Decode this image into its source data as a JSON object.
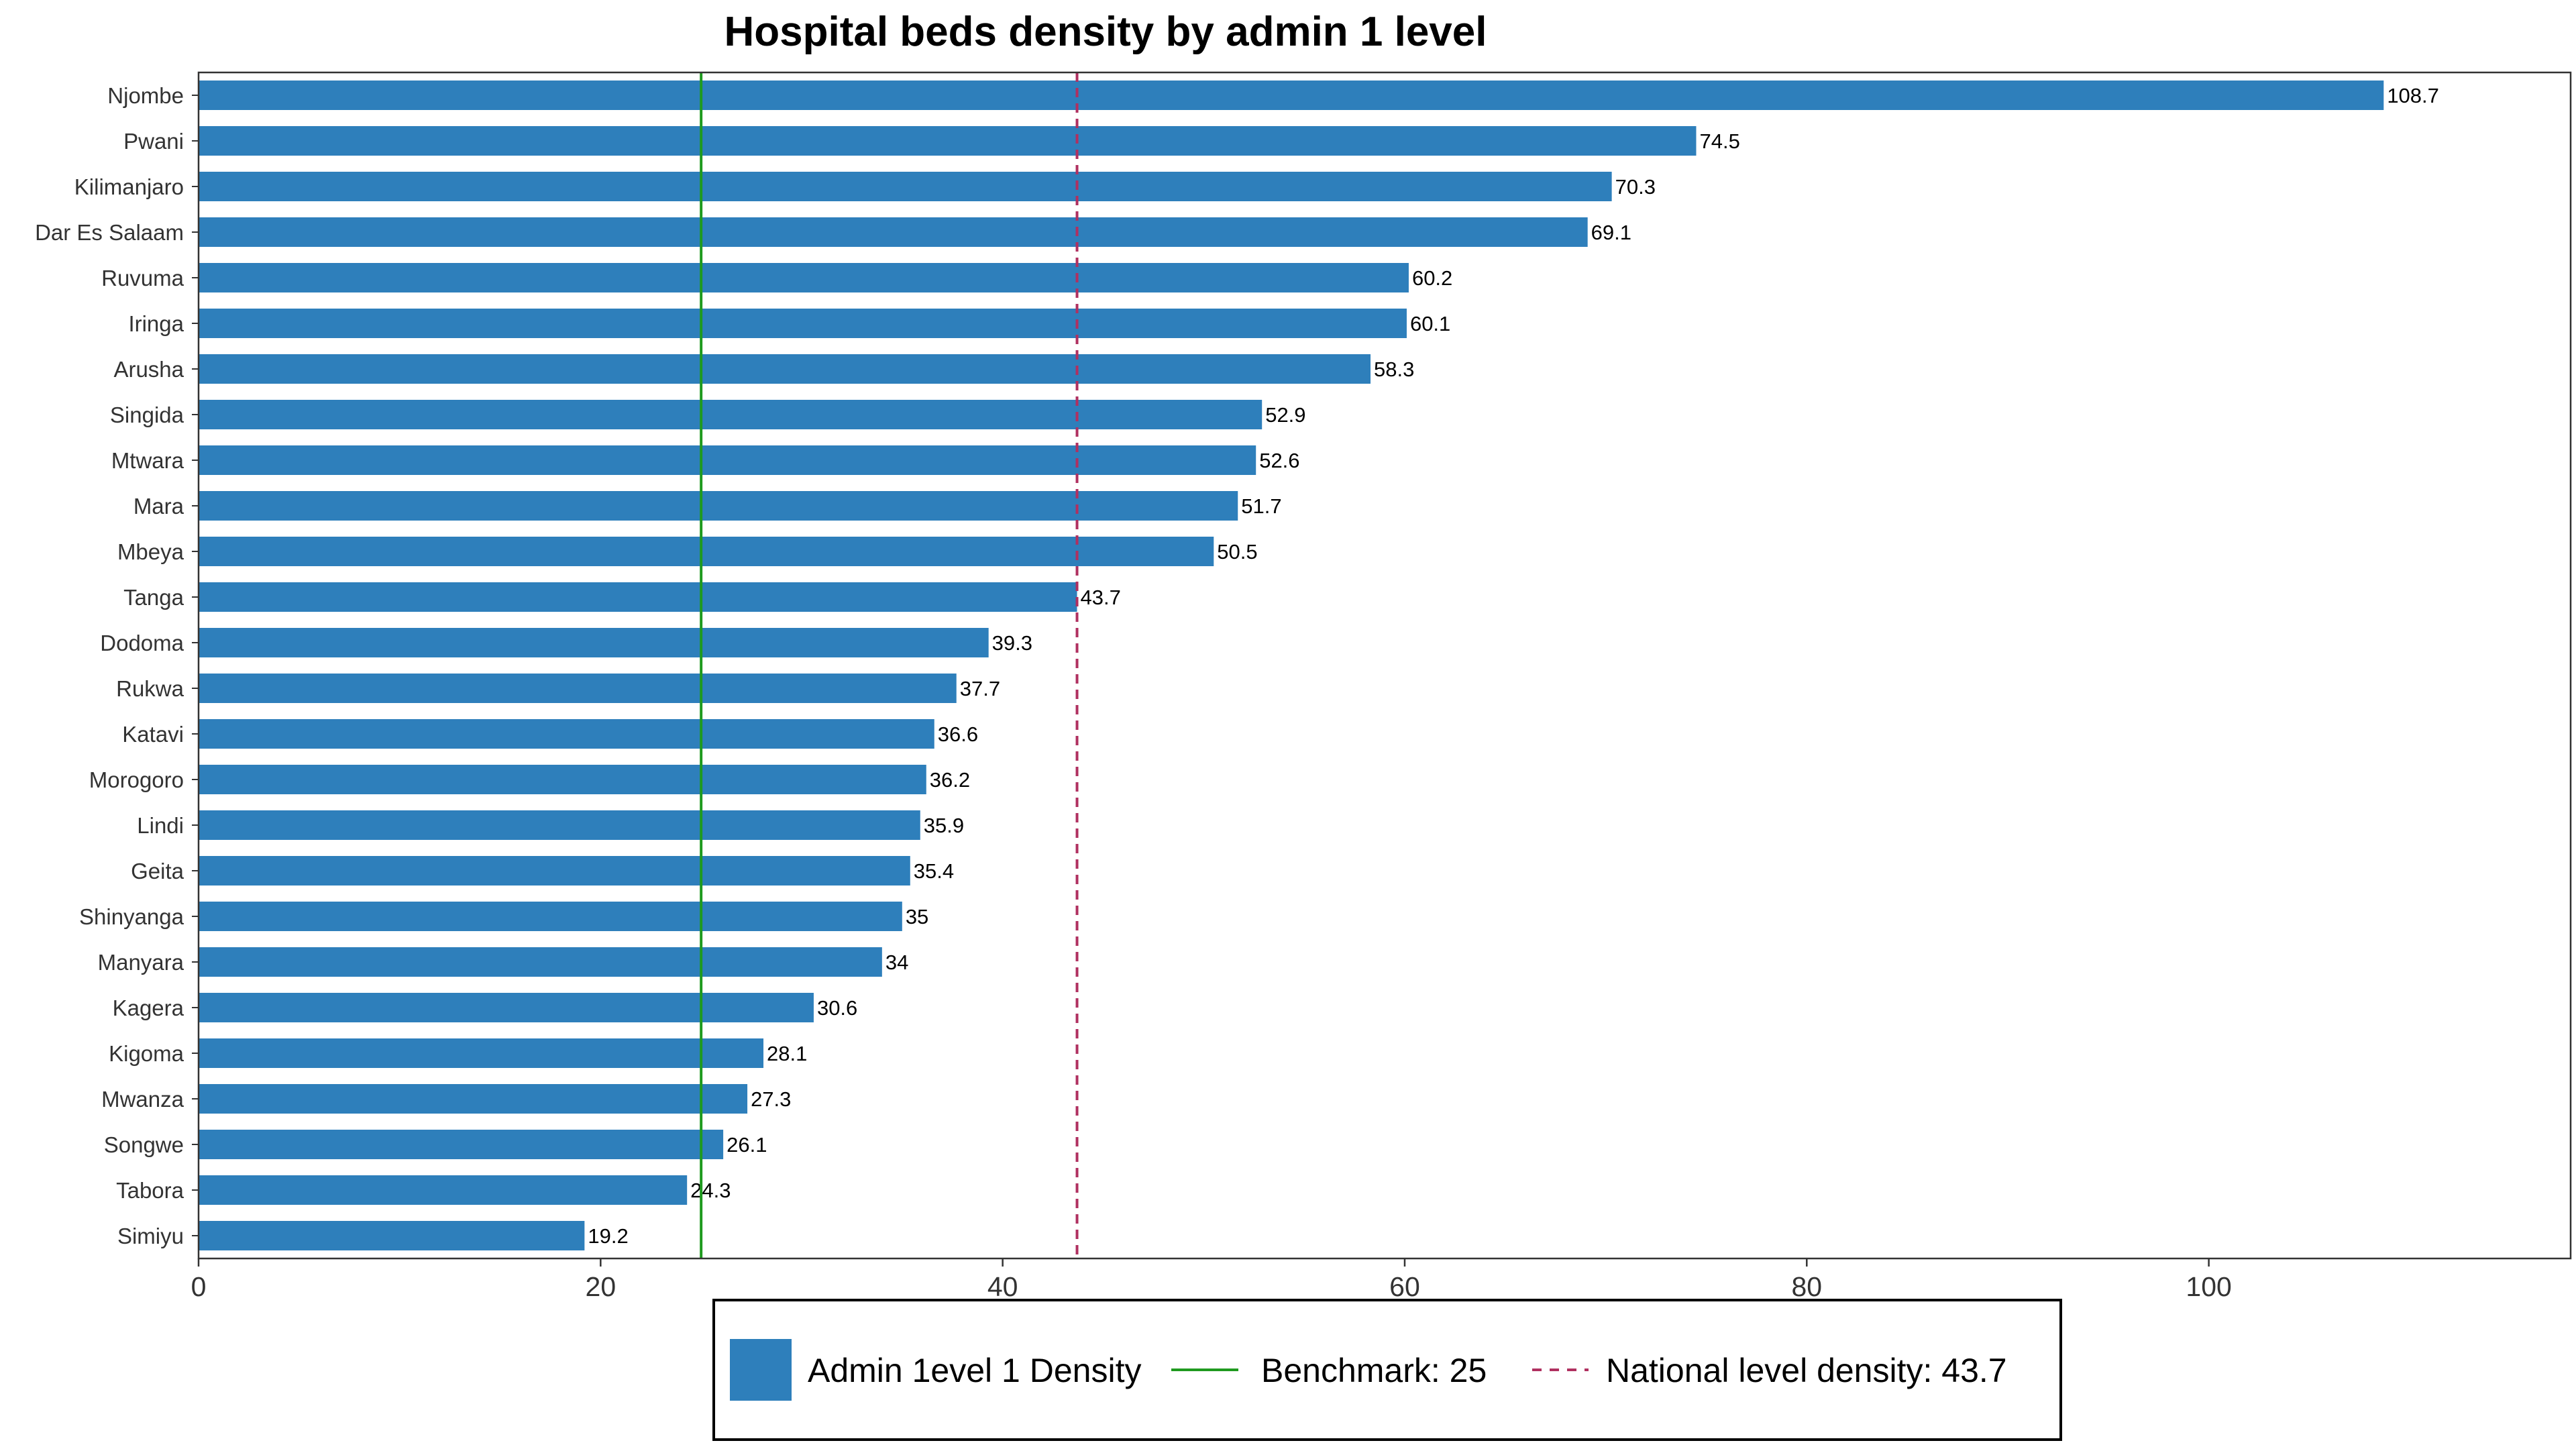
{
  "chart_data": {
    "type": "bar",
    "orientation": "horizontal",
    "title": "Hospital beds density by admin 1 level",
    "xlabel": "",
    "ylabel": "",
    "xlim": [
      0,
      118
    ],
    "xticks": [
      0,
      20,
      40,
      60,
      80,
      100
    ],
    "grid": false,
    "legend_position": "bottom",
    "categories": [
      "Njombe",
      "Pwani",
      "Kilimanjaro",
      "Dar Es Salaam",
      "Ruvuma",
      "Iringa",
      "Arusha",
      "Singida",
      "Mtwara",
      "Mara",
      "Mbeya",
      "Tanga",
      "Dodoma",
      "Rukwa",
      "Katavi",
      "Morogoro",
      "Lindi",
      "Geita",
      "Shinyanga",
      "Manyara",
      "Kagera",
      "Kigoma",
      "Mwanza",
      "Songwe",
      "Tabora",
      "Simiyu"
    ],
    "values": [
      108.7,
      74.5,
      70.3,
      69.1,
      60.2,
      60.1,
      58.3,
      52.9,
      52.6,
      51.7,
      50.5,
      43.7,
      39.3,
      37.7,
      36.6,
      36.2,
      35.9,
      35.4,
      35,
      34,
      30.6,
      28.1,
      27.3,
      26.1,
      24.3,
      19.2
    ],
    "value_labels": [
      "108.7",
      "74.5",
      "70.3",
      "69.1",
      "60.2",
      "60.1",
      "58.3",
      "52.9",
      "52.6",
      "51.7",
      "50.5",
      "43.7",
      "39.3",
      "37.7",
      "36.6",
      "36.2",
      "35.9",
      "35.4",
      "35",
      "34",
      "30.6",
      "28.1",
      "27.3",
      "26.1",
      "24.3",
      "19.2"
    ],
    "series": [
      {
        "name": "Admin 1evel 1 Density",
        "color": "#2e7fbb"
      }
    ],
    "reference_lines": [
      {
        "name": "Benchmark: 25",
        "value": 25,
        "color": "#1f9a1f",
        "style": "solid"
      },
      {
        "name": "National level density: 43.7",
        "value": 43.7,
        "color": "#b03060",
        "style": "dashed"
      }
    ]
  }
}
